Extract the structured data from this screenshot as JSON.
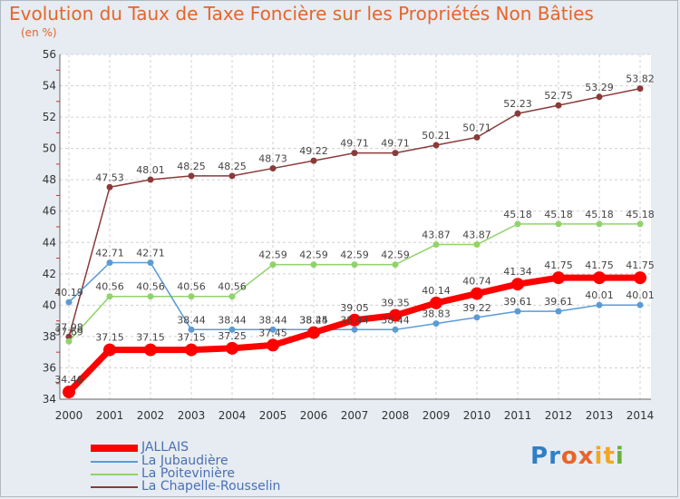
{
  "header": {
    "title": "Evolution du Taux de Taxe Foncière sur les Propriétés Non Bâties",
    "subtitle": "(en %)"
  },
  "logo": {
    "text": "Proxiti",
    "colors": [
      "#2f7fc4",
      "#e8642a",
      "#f2a81d",
      "#69b334"
    ]
  },
  "chart_data": {
    "type": "line",
    "title": "Evolution du Taux de Taxe Foncière sur les Propriétés Non Bâties",
    "ylabel": "(en %)",
    "xlabel": "",
    "x": [
      2000,
      2001,
      2002,
      2003,
      2004,
      2005,
      2006,
      2007,
      2008,
      2009,
      2010,
      2011,
      2012,
      2013,
      2014
    ],
    "ylim": [
      34,
      56
    ],
    "yticks": [
      34,
      36,
      38,
      40,
      42,
      44,
      46,
      48,
      50,
      52,
      54,
      56
    ],
    "grid": true,
    "legend": "bottom-left",
    "series": [
      {
        "name": "JALLAIS",
        "color": "#ff0000",
        "values": [
          34.46,
          37.15,
          37.15,
          37.15,
          37.25,
          37.45,
          38.25,
          39.05,
          39.35,
          40.14,
          40.74,
          41.34,
          41.75,
          41.75,
          41.75
        ],
        "labels": [
          "34.46",
          "37.15",
          "37.15",
          "37.15",
          "37.25",
          "37.45",
          "38.25",
          "39.05",
          "39.35",
          "40.14",
          "40.74",
          "41.34",
          "41.75",
          "41.75",
          "41.75"
        ]
      },
      {
        "name": "La Jubaudière",
        "color": "#5b9bd5",
        "values": [
          40.19,
          42.71,
          42.71,
          38.44,
          38.44,
          38.44,
          38.44,
          38.44,
          38.44,
          38.83,
          39.22,
          39.61,
          39.61,
          40.01,
          40.01
        ],
        "labels": [
          "40.19",
          "42.71",
          "42.71",
          "38.44",
          "38.44",
          "38.44",
          "38.44",
          "38.44",
          "38.44",
          "38.83",
          "39.22",
          "39.61",
          "39.61",
          "40.01",
          "40.01"
        ]
      },
      {
        "name": "La Poitevinière",
        "color": "#90d36b",
        "values": [
          37.69,
          40.56,
          40.56,
          40.56,
          40.56,
          42.59,
          42.59,
          42.59,
          42.59,
          43.87,
          43.87,
          45.18,
          45.18,
          45.18,
          45.18
        ],
        "labels": [
          "37.69",
          "40.56",
          "40.56",
          "40.56",
          "40.56",
          "42.59",
          "42.59",
          "42.59",
          "42.59",
          "43.87",
          "43.87",
          "45.18",
          "45.18",
          "45.18",
          "45.18"
        ]
      },
      {
        "name": "La Chapelle-Rousselin",
        "color": "#8b3a3a",
        "values": [
          37.98,
          47.53,
          48.01,
          48.25,
          48.25,
          48.73,
          49.22,
          49.71,
          49.71,
          50.21,
          50.71,
          52.23,
          52.75,
          53.29,
          53.82
        ],
        "labels": [
          "37.98",
          "47.53",
          "48.01",
          "48.25",
          "48.25",
          "48.73",
          "49.22",
          "49.71",
          "49.71",
          "50.21",
          "50.71",
          "52.23",
          "52.75",
          "53.29",
          "53.82"
        ]
      }
    ]
  }
}
